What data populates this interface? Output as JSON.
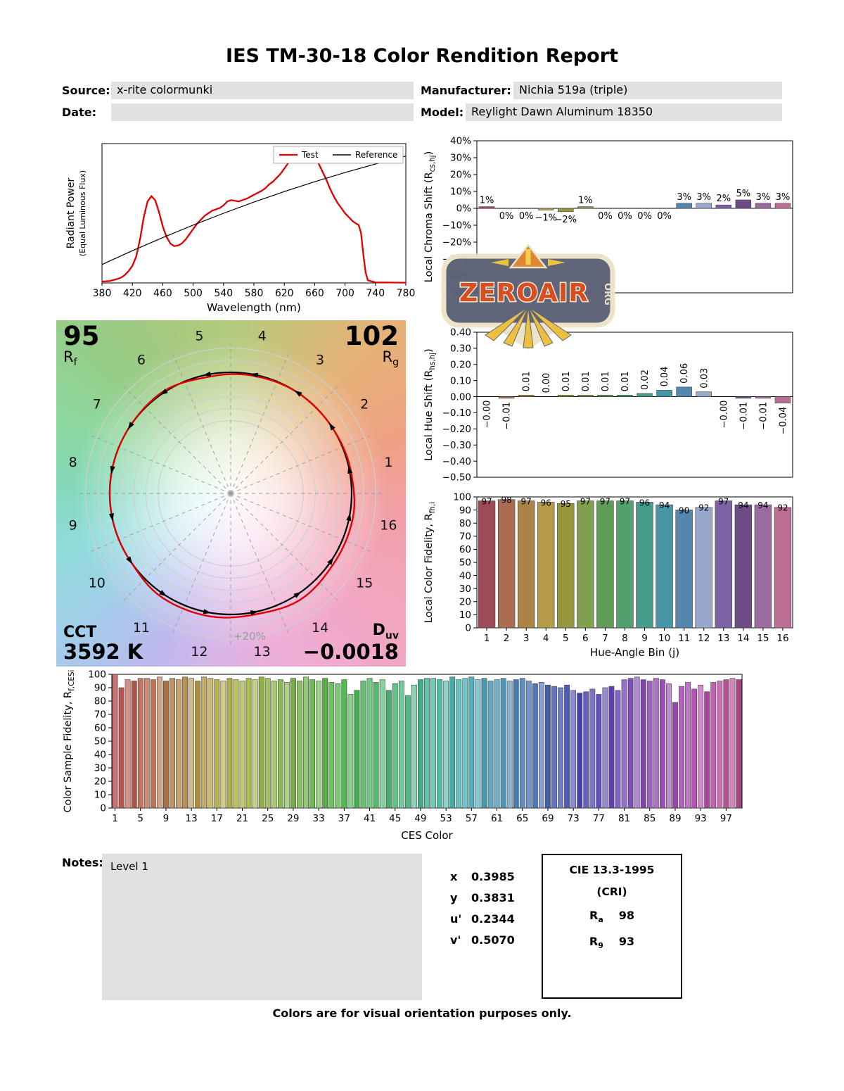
{
  "title": "IES TM-30-18 Color Rendition Report",
  "header": {
    "source_label": "Source:",
    "source_value": "x-rite colormunki",
    "date_label": "Date:",
    "date_value": "",
    "manufacturer_label": "Manufacturer:",
    "manufacturer_value": "Nichia 519a (triple)",
    "model_label": "Model:",
    "model_value": "Reylight Dawn Aluminum 18350"
  },
  "cvg": {
    "rf_value": "95",
    "rf_label": "R",
    "rf_sub": "f",
    "rg_value": "102",
    "rg_label": "R",
    "rg_sub": "g",
    "cct_label": "CCT",
    "cct_value": "3592 K",
    "duv_label": "D",
    "duv_sub": "uv",
    "duv_value": "−0.0018",
    "ring_label": "+20%",
    "bin_numbers": [
      1,
      2,
      3,
      4,
      5,
      6,
      7,
      8,
      9,
      10,
      11,
      12,
      13,
      14,
      15,
      16
    ]
  },
  "notes": {
    "label": "Notes:",
    "value": "Level 1"
  },
  "chromaticity": {
    "rows": [
      {
        "label": "x",
        "value": "0.3985"
      },
      {
        "label": "y",
        "value": "0.3831"
      },
      {
        "label": "u'",
        "value": "0.2344"
      },
      {
        "label": "v'",
        "value": "0.5070"
      }
    ]
  },
  "cri_box": {
    "title": "CIE 13.3-1995",
    "subtitle": "(CRI)",
    "ra_label": "R",
    "ra_sub": "a",
    "ra_value": "98",
    "r9_label": "R",
    "r9_sub": "9",
    "r9_value": "93"
  },
  "footer": "Colors are for visual orientation purposes only.",
  "watermark": {
    "text": "ZEROAIR",
    "org": "ORG"
  },
  "hue_bin_colors": [
    "#9e4a57",
    "#a96c52",
    "#ab8345",
    "#b59a4a",
    "#98973f",
    "#7fa04c",
    "#5f9c55",
    "#52a06e",
    "#469c8a",
    "#4694a4",
    "#5586ad",
    "#98a8cc",
    "#7c62a3",
    "#6d4c86",
    "#996b9e",
    "#bc6d93"
  ],
  "chart_data": [
    {
      "id": "spd",
      "type": "line",
      "xlabel": "Wavelength (nm)",
      "ylabel": "Radiant Power",
      "ylabel2": "(Equal Luminous Flux)",
      "xlim": [
        380,
        780
      ],
      "ylim": [
        0,
        1.06
      ],
      "xticks": [
        380,
        420,
        460,
        500,
        540,
        580,
        620,
        660,
        700,
        740,
        780
      ],
      "legend": [
        {
          "label": "Test",
          "color": "#e00000"
        },
        {
          "label": "Reference",
          "color": "#000000"
        }
      ],
      "series": [
        {
          "name": "Test",
          "color": "#e00000",
          "width": 2.3,
          "x": [
            380,
            390,
            400,
            405,
            410,
            415,
            420,
            425,
            430,
            435,
            440,
            445,
            450,
            455,
            460,
            465,
            470,
            475,
            480,
            485,
            490,
            495,
            500,
            505,
            510,
            515,
            520,
            525,
            530,
            535,
            540,
            545,
            550,
            555,
            560,
            565,
            570,
            575,
            580,
            585,
            590,
            595,
            600,
            605,
            610,
            615,
            620,
            625,
            630,
            635,
            640,
            645,
            650,
            655,
            660,
            665,
            670,
            675,
            680,
            685,
            690,
            695,
            700,
            705,
            710,
            715,
            718,
            721,
            724,
            727,
            730,
            740,
            760,
            780
          ],
          "y": [
            0.01,
            0.015,
            0.03,
            0.04,
            0.06,
            0.09,
            0.13,
            0.2,
            0.33,
            0.5,
            0.62,
            0.66,
            0.63,
            0.54,
            0.43,
            0.35,
            0.3,
            0.28,
            0.285,
            0.3,
            0.33,
            0.37,
            0.41,
            0.45,
            0.48,
            0.51,
            0.53,
            0.55,
            0.56,
            0.57,
            0.59,
            0.62,
            0.63,
            0.625,
            0.62,
            0.63,
            0.64,
            0.655,
            0.67,
            0.685,
            0.7,
            0.72,
            0.75,
            0.77,
            0.8,
            0.83,
            0.87,
            0.91,
            0.95,
            0.97,
            0.99,
            1.0,
            1.0,
            0.985,
            0.95,
            0.91,
            0.85,
            0.79,
            0.72,
            0.66,
            0.61,
            0.57,
            0.53,
            0.5,
            0.47,
            0.45,
            0.44,
            0.38,
            0.22,
            0.08,
            0.02,
            0.005,
            0.003,
            0.002
          ]
        },
        {
          "name": "Reference",
          "color": "#000000",
          "width": 1.2,
          "x": [
            380,
            420,
            460,
            500,
            540,
            580,
            620,
            660,
            700,
            740,
            780
          ],
          "y": [
            0.14,
            0.245,
            0.345,
            0.44,
            0.53,
            0.615,
            0.695,
            0.77,
            0.84,
            0.905,
            0.965
          ]
        }
      ]
    },
    {
      "id": "chroma_shift",
      "type": "bar",
      "ylabel_parts": [
        "Local Chroma Shift (R",
        "cs,hj",
        ")"
      ],
      "categories": [
        1,
        2,
        3,
        4,
        5,
        6,
        7,
        8,
        9,
        10,
        11,
        12,
        13,
        14,
        15,
        16
      ],
      "values": [
        1,
        0,
        0,
        -1,
        -2,
        1,
        0,
        0,
        0,
        0,
        3,
        3,
        2,
        5,
        3,
        3
      ],
      "labels": [
        "1%",
        "0%",
        "0%",
        "−1%",
        "−2%",
        "1%",
        "0%",
        "0%",
        "0%",
        "0%",
        "3%",
        "3%",
        "2%",
        "5%",
        "3%",
        "3%"
      ],
      "ylim": [
        -50,
        40
      ],
      "yticks": [
        40,
        30,
        20,
        10,
        0,
        -10,
        -20,
        -30,
        -40,
        -50
      ]
    },
    {
      "id": "hue_shift",
      "type": "bar",
      "ylabel_parts": [
        "Local Hue Shift (R",
        "hs,hj",
        ")"
      ],
      "categories": [
        1,
        2,
        3,
        4,
        5,
        6,
        7,
        8,
        9,
        10,
        11,
        12,
        13,
        14,
        15,
        16
      ],
      "values": [
        -0.0,
        -0.01,
        0.01,
        0.0,
        0.01,
        0.01,
        0.01,
        0.01,
        0.02,
        0.04,
        0.06,
        0.03,
        -0.0,
        -0.01,
        -0.01,
        -0.04
      ],
      "labels": [
        "−0.00",
        "−0.01",
        "0.01",
        "0.00",
        "0.01",
        "0.01",
        "0.01",
        "0.01",
        "0.02",
        "0.04",
        "0.06",
        "0.03",
        "−0.00",
        "−0.01",
        "−0.01",
        "−0.04"
      ],
      "ylim": [
        -0.5,
        0.4
      ],
      "yticks": [
        0.4,
        0.3,
        0.2,
        0.1,
        0,
        -0.1,
        -0.2,
        -0.3,
        -0.4,
        -0.5
      ]
    },
    {
      "id": "local_fidelity",
      "type": "bar",
      "ylabel_parts": [
        "Local Color Fidelity, R",
        "fh,i",
        ""
      ],
      "xlabel": "Hue-Angle Bin (j)",
      "categories": [
        1,
        2,
        3,
        4,
        5,
        6,
        7,
        8,
        9,
        10,
        11,
        12,
        13,
        14,
        15,
        16
      ],
      "values": [
        97,
        98,
        97,
        96,
        95,
        97,
        97,
        97,
        96,
        94,
        90,
        92,
        97,
        94,
        94,
        92
      ],
      "labels": [
        "97",
        "98",
        "97",
        "96",
        "95",
        "97",
        "97",
        "97",
        "96",
        "94",
        "90",
        "92",
        "97",
        "94",
        "94",
        "92"
      ],
      "ylim": [
        0,
        100
      ],
      "yticks": [
        0,
        10,
        20,
        30,
        40,
        50,
        60,
        70,
        80,
        90,
        100
      ],
      "xticks": [
        1,
        2,
        3,
        4,
        5,
        6,
        7,
        8,
        9,
        10,
        11,
        12,
        13,
        14,
        15,
        16
      ]
    },
    {
      "id": "ces",
      "type": "bar",
      "ylabel_parts": [
        "Color Sample Fidelity, R",
        "f,CESi",
        ""
      ],
      "xlabel": "CES Color",
      "ylim": [
        0,
        100
      ],
      "yticks": [
        0,
        10,
        20,
        30,
        40,
        50,
        60,
        70,
        80,
        90,
        100
      ],
      "xticks": [
        1,
        5,
        9,
        13,
        17,
        21,
        25,
        29,
        33,
        37,
        41,
        45,
        49,
        53,
        57,
        61,
        65,
        69,
        73,
        77,
        81,
        85,
        89,
        93,
        97
      ],
      "values": [
        100,
        90,
        96,
        95,
        97,
        97,
        96,
        98,
        95,
        97,
        96,
        98,
        97,
        95,
        98,
        97,
        96,
        95,
        97,
        96,
        95,
        97,
        96,
        98,
        97,
        95,
        96,
        94,
        97,
        95,
        98,
        96,
        95,
        97,
        94,
        93,
        96,
        85,
        88,
        95,
        97,
        94,
        96,
        88,
        93,
        95,
        84,
        92,
        96,
        97,
        97,
        96,
        95,
        98,
        96,
        97,
        98,
        96,
        97,
        95,
        96,
        97,
        95,
        96,
        97,
        95,
        93,
        94,
        92,
        91,
        90,
        92,
        88,
        86,
        87,
        89,
        85,
        90,
        91,
        88,
        96,
        97,
        98,
        96,
        95,
        97,
        96,
        93,
        79,
        91,
        94,
        89,
        92,
        87,
        94,
        95,
        96,
        97,
        96
      ],
      "colors": [
        "hsl(0,45%,62%)",
        "hsl(3,45%,52%)",
        "hsl(7,45%,68%)",
        "hsl(10,45%,47%)",
        "hsl(13,45%,57%)",
        "hsl(17,45%,62%)",
        "hsl(20,45%,52%)",
        "hsl(23,45%,68%)",
        "hsl(26,45%,47%)",
        "hsl(30,45%,57%)",
        "hsl(33,45%,62%)",
        "hsl(36,45%,52%)",
        "hsl(40,45%,68%)",
        "hsl(43,45%,47%)",
        "hsl(46,45%,57%)",
        "hsl(50,45%,62%)",
        "hsl(53,45%,52%)",
        "hsl(56,45%,68%)",
        "hsl(59,45%,47%)",
        "hsl(63,45%,57%)",
        "hsl(66,45%,62%)",
        "hsl(69,45%,52%)",
        "hsl(73,45%,68%)",
        "hsl(76,45%,47%)",
        "hsl(79,45%,57%)",
        "hsl(83,45%,62%)",
        "hsl(86,45%,52%)",
        "hsl(89,45%,68%)",
        "hsl(92,45%,47%)",
        "hsl(96,45%,57%)",
        "hsl(99,45%,62%)",
        "hsl(102,45%,52%)",
        "hsl(106,45%,68%)",
        "hsl(109,45%,47%)",
        "hsl(112,45%,57%)",
        "hsl(116,45%,62%)",
        "hsl(119,45%,52%)",
        "hsl(122,45%,68%)",
        "hsl(125,45%,47%)",
        "hsl(129,45%,57%)",
        "hsl(132,45%,62%)",
        "hsl(135,45%,52%)",
        "hsl(139,45%,68%)",
        "hsl(142,45%,47%)",
        "hsl(145,45%,57%)",
        "hsl(149,45%,62%)",
        "hsl(152,45%,52%)",
        "hsl(155,45%,68%)",
        "hsl(158,45%,47%)",
        "hsl(162,45%,57%)",
        "hsl(165,45%,62%)",
        "hsl(168,45%,52%)",
        "hsl(172,45%,68%)",
        "hsl(175,45%,47%)",
        "hsl(178,45%,57%)",
        "hsl(182,45%,62%)",
        "hsl(185,45%,52%)",
        "hsl(188,45%,68%)",
        "hsl(191,45%,47%)",
        "hsl(195,45%,57%)",
        "hsl(198,45%,62%)",
        "hsl(201,45%,52%)",
        "hsl(205,45%,68%)",
        "hsl(208,45%,47%)",
        "hsl(211,45%,57%)",
        "hsl(215,45%,62%)",
        "hsl(218,45%,52%)",
        "hsl(221,45%,68%)",
        "hsl(224,45%,47%)",
        "hsl(228,45%,57%)",
        "hsl(231,45%,62%)",
        "hsl(234,45%,52%)",
        "hsl(238,45%,68%)",
        "hsl(241,45%,47%)",
        "hsl(244,45%,57%)",
        "hsl(248,45%,62%)",
        "hsl(251,45%,52%)",
        "hsl(254,45%,68%)",
        "hsl(257,45%,47%)",
        "hsl(261,45%,57%)",
        "hsl(264,45%,62%)",
        "hsl(267,45%,52%)",
        "hsl(271,45%,68%)",
        "hsl(274,45%,47%)",
        "hsl(277,45%,57%)",
        "hsl(281,45%,62%)",
        "hsl(284,45%,52%)",
        "hsl(287,45%,68%)",
        "hsl(290,45%,47%)",
        "hsl(294,45%,57%)",
        "hsl(297,45%,62%)",
        "hsl(300,45%,52%)",
        "hsl(304,45%,68%)",
        "hsl(307,45%,47%)",
        "hsl(310,45%,57%)",
        "hsl(314,45%,62%)",
        "hsl(317,45%,52%)",
        "hsl(320,45%,68%)",
        "hsl(323,45%,47%)"
      ]
    },
    {
      "id": "cvg_polar",
      "type": "polar",
      "rcs_percent": [
        1,
        0,
        0,
        -1,
        -2,
        1,
        0,
        0,
        0,
        0,
        3,
        3,
        2,
        5,
        3,
        3
      ]
    }
  ]
}
